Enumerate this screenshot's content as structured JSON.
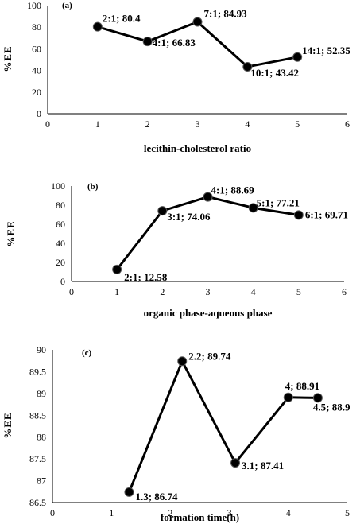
{
  "chart_data": [
    {
      "type": "line",
      "panel_tag": "(a)",
      "xlabel": "lecithin-cholesterol ratio",
      "ylabel": "%EE",
      "xlim": [
        0,
        6
      ],
      "ylim": [
        0,
        100
      ],
      "xticks": [
        0,
        1,
        2,
        3,
        4,
        5,
        6
      ],
      "yticks": [
        0,
        20,
        40,
        60,
        80,
        100
      ],
      "grid": false,
      "points": [
        {
          "x": 1,
          "y": 80.4,
          "label": "2:1; 80.4"
        },
        {
          "x": 2,
          "y": 66.83,
          "label": "4:1; 66.83"
        },
        {
          "x": 3,
          "y": 84.93,
          "label": "7:1; 84.93"
        },
        {
          "x": 4,
          "y": 43.42,
          "label": "10:1; 43.42"
        },
        {
          "x": 5,
          "y": 52.35,
          "label": "14:1; 52.35"
        }
      ]
    },
    {
      "type": "line",
      "panel_tag": "(b)",
      "xlabel": "organic phase-aqueous phase",
      "ylabel": "%EE",
      "xlim": [
        0,
        6
      ],
      "ylim": [
        0,
        100
      ],
      "xticks": [
        0,
        1,
        2,
        3,
        4,
        5,
        6
      ],
      "yticks": [
        0,
        20,
        40,
        60,
        80,
        100
      ],
      "grid": false,
      "points": [
        {
          "x": 1,
          "y": 12.58,
          "label": "2:1; 12.58"
        },
        {
          "x": 2,
          "y": 74.06,
          "label": "3:1; 74.06"
        },
        {
          "x": 3,
          "y": 88.69,
          "label": "4:1; 88.69"
        },
        {
          "x": 4,
          "y": 77.21,
          "label": "5:1; 77.21"
        },
        {
          "x": 5,
          "y": 69.71,
          "label": "6:1; 69.71"
        }
      ]
    },
    {
      "type": "line",
      "panel_tag": "(c)",
      "xlabel": "formation time(h)",
      "ylabel": "%EE",
      "xlim": [
        0,
        5
      ],
      "ylim": [
        86.5,
        90
      ],
      "xticks": [
        0,
        1,
        2,
        3,
        4,
        5
      ],
      "yticks": [
        86.5,
        87,
        87.5,
        88,
        88.5,
        89,
        89.5,
        90
      ],
      "grid": false,
      "points": [
        {
          "x": 1.3,
          "y": 86.74,
          "label": "1.3; 86.74"
        },
        {
          "x": 2.2,
          "y": 89.74,
          "label": "2.2; 89.74"
        },
        {
          "x": 3.1,
          "y": 87.41,
          "label": "3.1; 87.41"
        },
        {
          "x": 4,
          "y": 88.91,
          "label": "4; 88.91"
        },
        {
          "x": 4.5,
          "y": 88.9,
          "label": "4.5; 88.9"
        }
      ]
    }
  ]
}
